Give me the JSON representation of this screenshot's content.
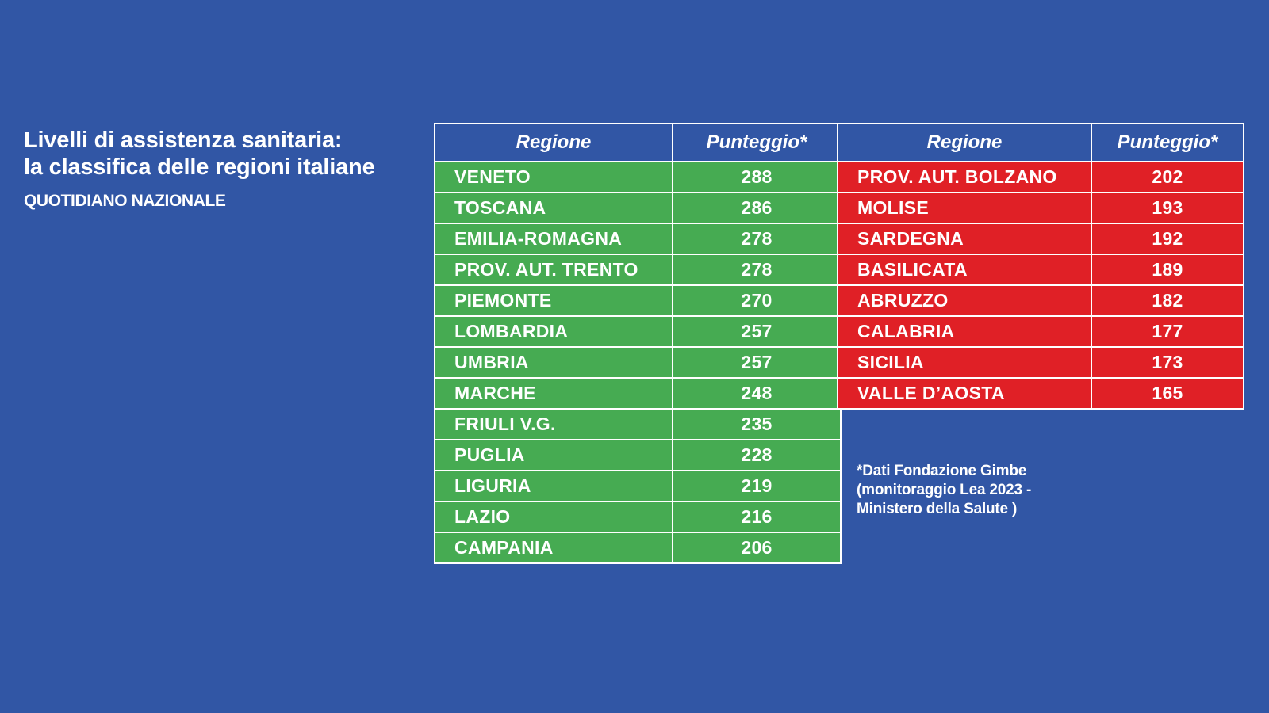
{
  "header": {
    "title_line1": "Livelli di assistenza sanitaria:",
    "title_line2": "la classifica delle regioni italiane",
    "source": "QUOTIDIANO NAZIONALE"
  },
  "chart_data": {
    "type": "table",
    "title": "Livelli di assistenza sanitaria: la classifica delle regioni italiane",
    "columns": [
      "Regione",
      "Punteggio*"
    ],
    "tables": [
      {
        "headers": [
          "Regione",
          "Punteggio*"
        ],
        "color": "#46ab52",
        "rows": [
          {
            "region": "VENETO",
            "score": 288
          },
          {
            "region": "TOSCANA",
            "score": 286
          },
          {
            "region": "EMILIA-ROMAGNA",
            "score": 278
          },
          {
            "region": "PROV. AUT. TRENTO",
            "score": 278
          },
          {
            "region": "PIEMONTE",
            "score": 270
          },
          {
            "region": "LOMBARDIA",
            "score": 257
          },
          {
            "region": "UMBRIA",
            "score": 257
          },
          {
            "region": "MARCHE",
            "score": 248
          },
          {
            "region": "FRIULI V.G.",
            "score": 235
          },
          {
            "region": "PUGLIA",
            "score": 228
          },
          {
            "region": "LIGURIA",
            "score": 219
          },
          {
            "region": "LAZIO",
            "score": 216
          },
          {
            "region": "CAMPANIA",
            "score": 206
          }
        ]
      },
      {
        "headers": [
          "Regione",
          "Punteggio*"
        ],
        "color": "#e02026",
        "rows": [
          {
            "region": "PROV. AUT. BOLZANO",
            "score": 202
          },
          {
            "region": "MOLISE",
            "score": 193
          },
          {
            "region": "SARDEGNA",
            "score": 192
          },
          {
            "region": "BASILICATA",
            "score": 189
          },
          {
            "region": "ABRUZZO",
            "score": 182
          },
          {
            "region": "CALABRIA",
            "score": 177
          },
          {
            "region": "SICILIA",
            "score": 173
          },
          {
            "region": "VALLE D’AOSTA",
            "score": 165
          }
        ]
      }
    ]
  },
  "footnote": {
    "line1": "*Dati Fondazione Gimbe",
    "line2": "(monitoraggio Lea 2023 -",
    "line3": "Ministero della Salute )"
  },
  "colors": {
    "background": "#3156a5",
    "good": "#46ab52",
    "bad": "#e02026",
    "text": "#ffffff"
  }
}
